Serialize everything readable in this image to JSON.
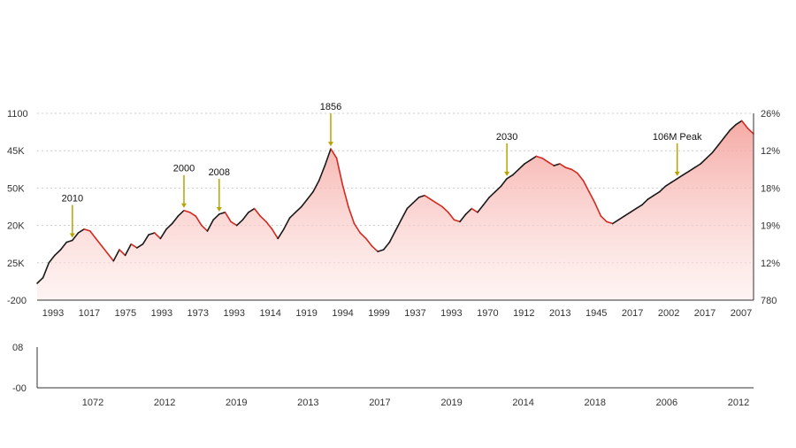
{
  "chart_data": [
    {
      "type": "area",
      "y_left_ticks": [
        "1100",
        "45K",
        "50K",
        "20K",
        "25K",
        "-200"
      ],
      "y_right_ticks": [
        "26%",
        "12%",
        "18%",
        "19%",
        "12%",
        "780"
      ],
      "x_tick_labels": [
        "1993",
        "1017",
        "1975",
        "1993",
        "1973",
        "1993",
        "1914",
        "1919",
        "1994",
        "1999",
        "1937",
        "1993",
        "1970",
        "1912",
        "2013",
        "1945",
        "2017",
        "2002",
        "2017",
        "2007"
      ],
      "grid": "horizontal-dashed",
      "fill_color": "#f6c4c1",
      "series": [
        {
          "values": [
            0.09,
            0.12,
            0.2,
            0.24,
            0.27,
            0.31,
            0.32,
            0.36,
            0.38,
            0.37,
            0.33,
            0.29,
            0.25,
            0.21,
            0.27,
            0.24,
            0.3,
            0.28,
            0.3,
            0.35,
            0.36,
            0.33,
            0.38,
            0.41,
            0.45,
            0.48,
            0.47,
            0.45,
            0.4,
            0.37,
            0.43,
            0.46,
            0.47,
            0.42,
            0.4,
            0.43,
            0.47,
            0.49,
            0.45,
            0.42,
            0.38,
            0.33,
            0.38,
            0.44,
            0.47,
            0.5,
            0.54,
            0.58,
            0.64,
            0.72,
            0.81,
            0.76,
            0.62,
            0.5,
            0.41,
            0.36,
            0.33,
            0.29,
            0.26,
            0.27,
            0.31,
            0.37,
            0.43,
            0.49,
            0.52,
            0.55,
            0.56,
            0.54,
            0.52,
            0.5,
            0.47,
            0.43,
            0.42,
            0.46,
            0.49,
            0.47,
            0.51,
            0.55,
            0.58,
            0.61,
            0.65,
            0.67,
            0.7,
            0.73,
            0.75,
            0.77,
            0.76,
            0.74,
            0.72,
            0.73,
            0.71,
            0.7,
            0.68,
            0.64,
            0.58,
            0.52,
            0.45,
            0.42,
            0.41,
            0.43,
            0.45,
            0.47,
            0.49,
            0.51,
            0.54,
            0.56,
            0.58,
            0.61,
            0.63,
            0.65,
            0.67,
            0.69,
            0.71,
            0.73,
            0.76,
            0.79,
            0.83,
            0.87,
            0.91,
            0.94,
            0.96,
            0.92,
            0.89
          ]
        }
      ],
      "annotations": [
        {
          "text": "2010",
          "idx": 6
        },
        {
          "text": "2000",
          "idx": 25
        },
        {
          "text": "2008",
          "idx": 31
        },
        {
          "text": "1856",
          "idx": 50
        },
        {
          "text": "2030",
          "idx": 80
        },
        {
          "text": "106M Peak",
          "idx": 109
        }
      ]
    },
    {
      "type": "line",
      "y_left_ticks": [
        "08",
        "-00"
      ],
      "x_tick_labels": [
        "1072",
        "2012",
        "2019",
        "2013",
        "2017",
        "2019",
        "2014",
        "2018",
        "2006",
        "2012"
      ],
      "series": []
    }
  ],
  "colors": {
    "up": "#1a1a1a",
    "down": "#d42a20",
    "annotation_arrow": "#b8a400",
    "grid": "#cccccc",
    "axis": "#333333"
  }
}
